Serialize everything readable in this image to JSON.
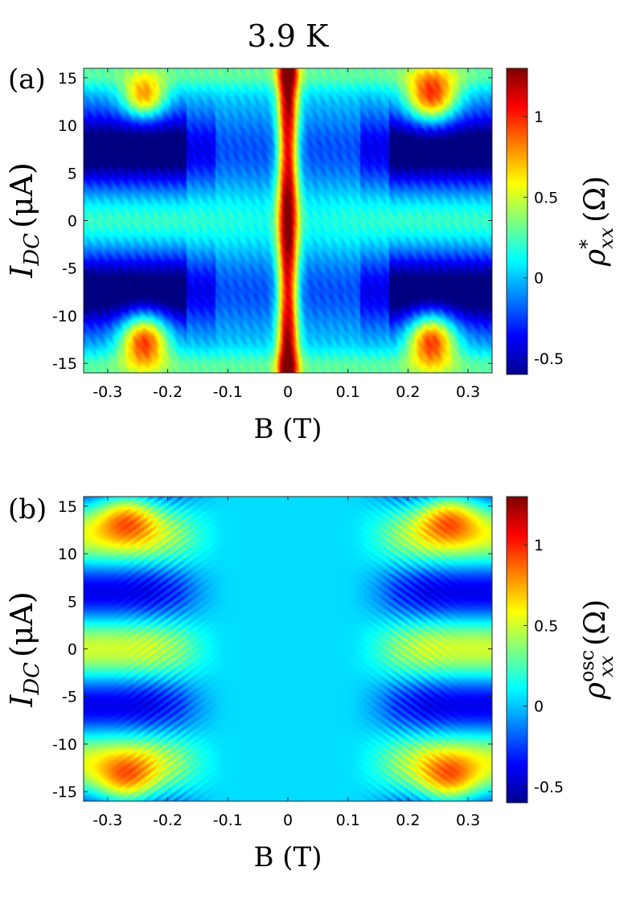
{
  "figure_title": "3.9 K",
  "chart_data": [
    {
      "type": "heatmap",
      "panel_label": "(a)",
      "xlabel": "B (T)",
      "ylabel": {
        "base": "I",
        "sub": "DC",
        "unit": "(μA)"
      },
      "colorbar_label": {
        "base": "ρ",
        "sup": "*",
        "sub": "xx",
        "unit": "(Ω)"
      },
      "xlim": [
        -0.34,
        0.34
      ],
      "ylim": [
        -16,
        16
      ],
      "x_ticks": [
        -0.3,
        -0.2,
        -0.1,
        0,
        0.1,
        0.2,
        0.3
      ],
      "x_tick_labels": [
        "-0.3",
        "-0.2",
        "-0.1",
        "0",
        "0.1",
        "0.2",
        "0.3"
      ],
      "y_ticks": [
        15,
        10,
        5,
        0,
        -5,
        -10,
        -15
      ],
      "y_tick_labels": [
        "15",
        "10",
        "5",
        "0",
        "-5",
        "-10",
        "-15"
      ],
      "clim": [
        -0.6,
        1.3
      ],
      "colorbar_ticks": [
        1,
        0.5,
        0,
        -0.5
      ],
      "colorbar_tick_labels": [
        "1",
        "0.5",
        "0",
        "-0.5"
      ],
      "colormap": "jet",
      "features": [
        {
          "kind": "ridge",
          "B": 0,
          "halfwidth": 0.018,
          "value": 1.2,
          "description": "central high-resistance stripe"
        },
        {
          "kind": "peak",
          "B": -0.24,
          "I": 13,
          "value": 0.65
        },
        {
          "kind": "peak",
          "B": 0.24,
          "I": 13,
          "value": 0.95
        },
        {
          "kind": "peak",
          "B": -0.24,
          "I": -12.5,
          "value": 1.0
        },
        {
          "kind": "peak",
          "B": 0.24,
          "I": -12.5,
          "value": 0.95
        },
        {
          "kind": "valley",
          "I": 7.5,
          "value": -0.6
        },
        {
          "kind": "valley",
          "I": -7.5,
          "value": -0.6
        },
        {
          "kind": "band",
          "I": 0,
          "value": 0.2
        }
      ]
    },
    {
      "type": "heatmap",
      "panel_label": "(b)",
      "xlabel": "B (T)",
      "ylabel": {
        "base": "I",
        "sub": "DC",
        "unit": "(μA)"
      },
      "colorbar_label": {
        "base": "ρ",
        "sup": "osc",
        "sub": "xx",
        "unit": "(Ω)"
      },
      "xlim": [
        -0.34,
        0.34
      ],
      "ylim": [
        -16,
        16
      ],
      "x_ticks": [
        -0.3,
        -0.2,
        -0.1,
        0,
        0.1,
        0.2,
        0.3
      ],
      "x_tick_labels": [
        "-0.3",
        "-0.2",
        "-0.1",
        "0",
        "0.1",
        "0.2",
        "0.3"
      ],
      "y_ticks": [
        15,
        10,
        5,
        0,
        -5,
        -10,
        -15
      ],
      "y_tick_labels": [
        "15",
        "10",
        "5",
        "0",
        "-5",
        "-10",
        "-15"
      ],
      "clim": [
        -0.6,
        1.3
      ],
      "colorbar_ticks": [
        1,
        0.5,
        0,
        -0.5
      ],
      "colorbar_tick_labels": [
        "1",
        "0.5",
        "0",
        "-0.5"
      ],
      "colormap": "jet",
      "features": [
        {
          "kind": "peak",
          "B": -0.27,
          "I": 14,
          "value": 0.95
        },
        {
          "kind": "peak",
          "B": 0.27,
          "I": 14,
          "value": 0.95
        },
        {
          "kind": "peak",
          "B": -0.27,
          "I": -14,
          "value": 0.95
        },
        {
          "kind": "peak",
          "B": 0.27,
          "I": -14,
          "value": 0.95
        },
        {
          "kind": "valley",
          "B": -0.27,
          "I": 6,
          "value": -0.5
        },
        {
          "kind": "valley",
          "B": 0.27,
          "I": 6,
          "value": -0.5
        },
        {
          "kind": "valley",
          "B": -0.27,
          "I": -6,
          "value": -0.5
        },
        {
          "kind": "valley",
          "B": 0.27,
          "I": -6,
          "value": -0.5
        },
        {
          "kind": "flat_region",
          "B_range": [
            -0.1,
            0.1
          ],
          "value": 0.05
        }
      ]
    }
  ]
}
